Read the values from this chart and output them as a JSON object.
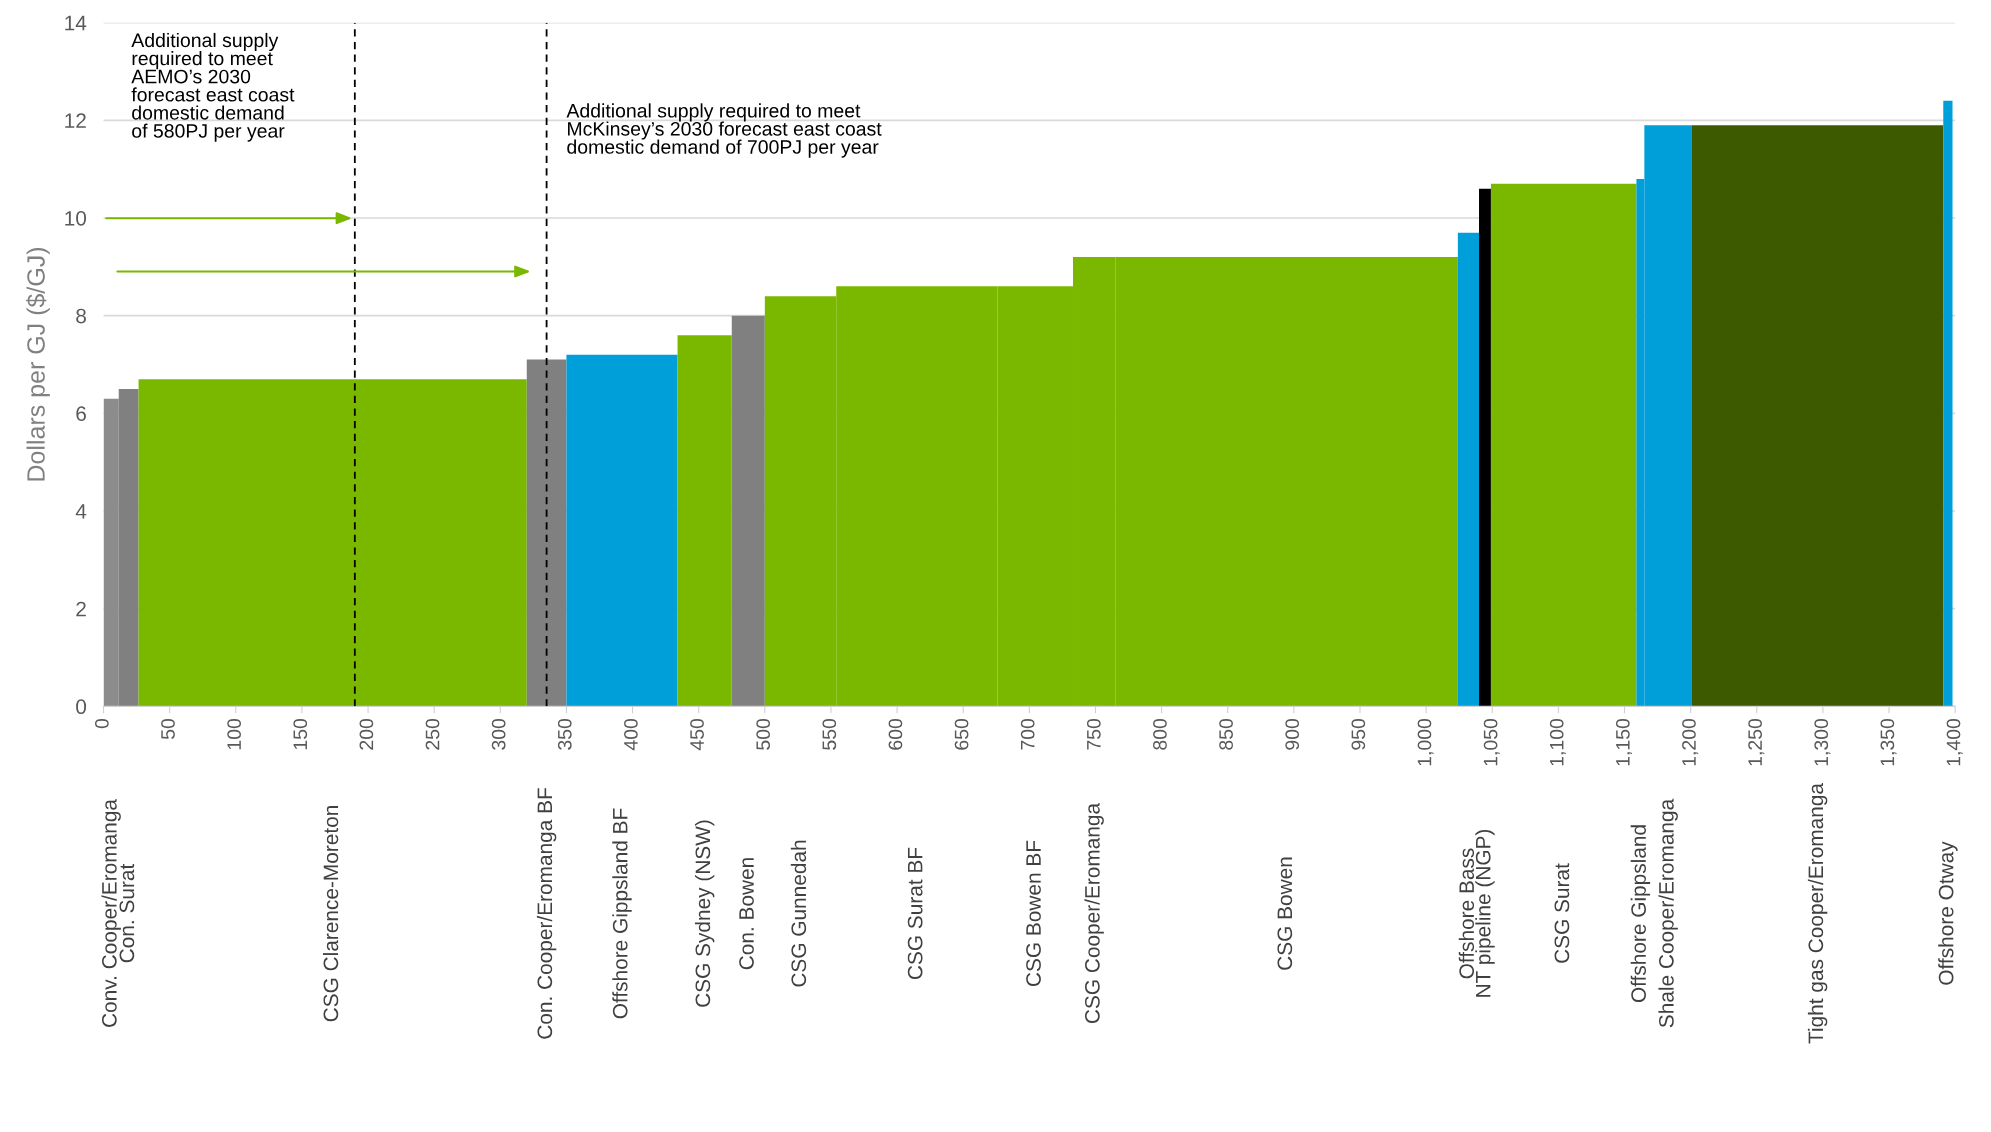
{
  "chart_data": {
    "type": "histogram",
    "ylabel": "Dollars per GJ ($/GJ)",
    "categories": [
      "Conv. Cooper/Eromanga",
      "Con. Surat",
      "CSG Clarence-Moreton",
      "Con. Cooper/Eromanga BF",
      "Offshore Gippsland BF",
      "CSG Sydney (NSW)",
      "Con. Bowen",
      "CSG Gunnedah",
      "CSG Surat BF",
      "CSG Bowen BF",
      "CSG Cooper/Eromanga",
      "CSG Bowen",
      "Offshore Bass",
      "NT pipeline (NGP)",
      "CSG Surat",
      "Offshore Gippsland",
      "Shale Cooper/Eromanga",
      "Tight gas Cooper/Eromanga",
      "Offshore Otway"
    ],
    "bins": [
      0,
      11.5,
      26.5,
      320,
      350,
      434,
      475,
      500,
      554,
      676,
      733,
      765,
      1024,
      1040,
      1049,
      1159,
      1165,
      1201,
      1391,
      1398
    ],
    "values": [
      6.3,
      6.5,
      6.7,
      7.1,
      7.2,
      7.6,
      8.0,
      8.4,
      8.6,
      8.6,
      9.2,
      9.2,
      9.7,
      10.6,
      10.7,
      10.8,
      11.9,
      11.9,
      12.4
    ],
    "colors": [
      "#8c8c8c",
      "#808080",
      "#7ab800",
      "#808080",
      "#009fda",
      "#7ab800",
      "#808080",
      "#7ab800",
      "#7ab800",
      "#7ab800",
      "#7ab800",
      "#7ab800",
      "#009fda",
      "#000000",
      "#7ab800",
      "#009fda",
      "#009fda",
      "#3d5a00",
      "#009fda"
    ],
    "xlim": [
      0,
      1400
    ],
    "xticks": [
      0,
      50,
      100,
      150,
      200,
      250,
      300,
      350,
      400,
      450,
      500,
      550,
      600,
      650,
      700,
      750,
      800,
      850,
      900,
      950,
      {
        "value": 1000,
        "label": "1,000"
      },
      {
        "value": 1050,
        "label": "1,050"
      },
      {
        "value": 1100,
        "label": "1,100"
      },
      {
        "value": 1150,
        "label": "1,150"
      },
      {
        "value": 1200,
        "label": "1,200"
      },
      {
        "value": 1250,
        "label": "1,250"
      },
      {
        "value": 1300,
        "label": "1,300"
      },
      {
        "value": 1350,
        "label": "1,350"
      },
      {
        "value": 1400,
        "label": "1,400"
      }
    ],
    "ylim": [
      0,
      14
    ],
    "yticks": [
      0,
      2,
      4,
      6,
      8,
      10,
      12,
      14
    ],
    "grid": "y",
    "ref_lines": [
      {
        "axis": "x",
        "value": 190,
        "label": null,
        "color": "#000000",
        "line_style": "dashed"
      },
      {
        "axis": "x",
        "value": 335,
        "label": null,
        "color": "#000000",
        "line_style": "dashed"
      }
    ],
    "annotations": [
      "Additional supply\nrequired to meet\nAEMO’s 2030\nforecast east coast\ndomestic demand\nof 580PJ per year",
      "Additional supply required to meet\nMcKinsey’s 2030 forecast east coast\ndomestic demand of 700PJ per year"
    ]
  }
}
